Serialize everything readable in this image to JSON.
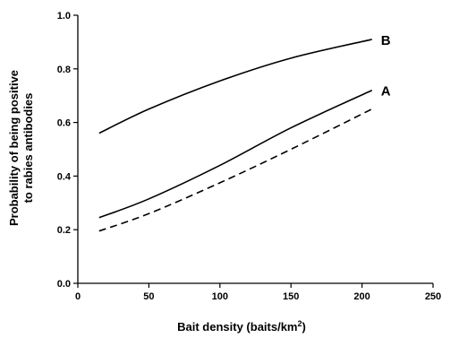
{
  "chart_data": {
    "type": "line",
    "title": "",
    "xlabel": "Bait density (baits/km",
    "xlabel_sup": "2",
    "xlabel_close": ")",
    "ylabel_line1": "Probability of being positive",
    "ylabel_line2": "to rabies antibodies",
    "xlim": [
      0,
      250
    ],
    "ylim": [
      0.0,
      1.0
    ],
    "x_ticks": [
      0,
      50,
      100,
      150,
      200,
      250
    ],
    "x_tick_labels": [
      "0",
      "50",
      "100",
      "150",
      "200",
      "250"
    ],
    "y_ticks": [
      0.0,
      0.2,
      0.4,
      0.6,
      0.8,
      1.0
    ],
    "y_tick_labels": [
      "0.0",
      "0.2",
      "0.4",
      "0.6",
      "0.8",
      "1.0"
    ],
    "grid": false,
    "series": [
      {
        "name": "B",
        "style": "solid",
        "x": [
          15,
          50,
          100,
          150,
          207
        ],
        "y": [
          0.56,
          0.65,
          0.755,
          0.84,
          0.91
        ]
      },
      {
        "name": "A",
        "style": "solid",
        "x": [
          15,
          50,
          100,
          150,
          207
        ],
        "y": [
          0.245,
          0.315,
          0.44,
          0.58,
          0.72
        ]
      },
      {
        "name": "",
        "style": "dashed",
        "x": [
          15,
          50,
          100,
          150,
          207
        ],
        "y": [
          0.195,
          0.26,
          0.375,
          0.5,
          0.65
        ]
      }
    ],
    "colors": {
      "line": "#000000",
      "axis": "#000000"
    }
  }
}
